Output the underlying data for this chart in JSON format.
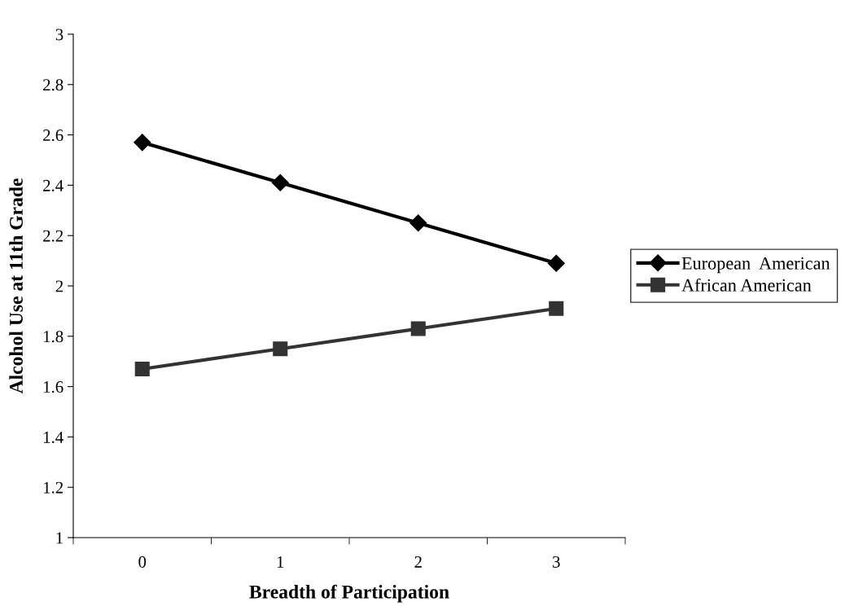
{
  "chart_data": {
    "type": "line",
    "xlabel": "Breadth of Participation",
    "ylabel": "Alcohol Use at 11th Grade",
    "categories": [
      "0",
      "1",
      "2",
      "3"
    ],
    "series": [
      {
        "name": "European  American",
        "color": "#000000",
        "marker": "diamond",
        "values": [
          2.57,
          2.41,
          2.25,
          2.09
        ]
      },
      {
        "name": "African American",
        "color": "#333333",
        "marker": "square",
        "values": [
          1.67,
          1.75,
          1.83,
          1.91
        ]
      }
    ],
    "ylim": [
      1,
      3
    ],
    "yticks": [
      1,
      1.2,
      1.4,
      1.6,
      1.8,
      2,
      2.2,
      2.4,
      2.6,
      2.8,
      3
    ],
    "grid": false,
    "legend": "right",
    "line_style": "solid"
  }
}
